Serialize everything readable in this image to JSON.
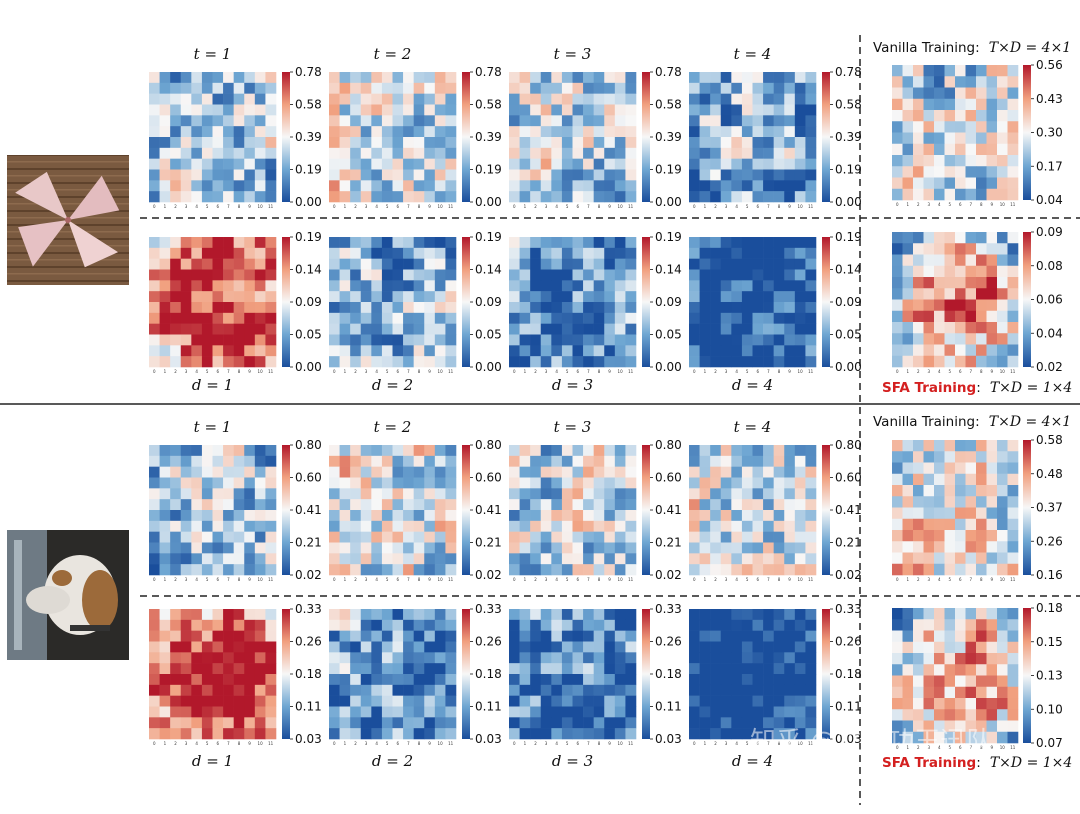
{
  "figure": {
    "row_labels_top": [
      "t = 1",
      "t = 2",
      "t = 3",
      "t = 4"
    ],
    "row_labels_bottom": [
      "d = 1",
      "d = 2",
      "d = 3",
      "d = 4"
    ],
    "vanilla_title_prefix": "Vanilla Training:",
    "vanilla_title_math": "T×D = 4×1",
    "sfa_title_prefix": "SFA Training",
    "sfa_title_suffix": ":",
    "sfa_title_math": "T×D = 1×4",
    "watermark": "知乎 @立大功王迅队",
    "colors": {
      "low": "#1a4e9c",
      "mid": "#f7f7f7",
      "high": "#b2182b"
    }
  },
  "images": [
    {
      "name": "pinwheel-photo",
      "description_icon": "pinwheel-image"
    },
    {
      "name": "dog-photo",
      "description_icon": "dog-image"
    }
  ],
  "chart_data": [
    {
      "type": "heatmap",
      "group": "pinwheel",
      "row": "t",
      "label": "t = 1",
      "grid": [
        12,
        12
      ],
      "ticks": [
        "0.00",
        "0.19",
        "0.39",
        "0.58",
        "0.78"
      ],
      "vmin": 0.0,
      "vmax": 0.78,
      "seed": 11,
      "bias": -0.15
    },
    {
      "type": "heatmap",
      "group": "pinwheel",
      "row": "t",
      "label": "t = 2",
      "grid": [
        12,
        12
      ],
      "ticks": [
        "0.00",
        "0.19",
        "0.39",
        "0.58",
        "0.78"
      ],
      "vmin": 0.0,
      "vmax": 0.78,
      "seed": 12,
      "bias": -0.05
    },
    {
      "type": "heatmap",
      "group": "pinwheel",
      "row": "t",
      "label": "t = 3",
      "grid": [
        12,
        12
      ],
      "ticks": [
        "0.00",
        "0.19",
        "0.39",
        "0.58",
        "0.78"
      ],
      "vmin": 0.0,
      "vmax": 0.78,
      "seed": 13,
      "bias": -0.08
    },
    {
      "type": "heatmap",
      "group": "pinwheel",
      "row": "t",
      "label": "t = 4",
      "grid": [
        12,
        12
      ],
      "ticks": [
        "0.00",
        "0.19",
        "0.39",
        "0.58",
        "0.78"
      ],
      "vmin": 0.0,
      "vmax": 0.78,
      "seed": 14,
      "bias": -0.25
    },
    {
      "type": "heatmap",
      "group": "pinwheel",
      "row": "vanilla",
      "label": "Vanilla Training: T×D = 4×1",
      "grid": [
        12,
        12
      ],
      "ticks": [
        "0.04",
        "0.17",
        "0.30",
        "0.43",
        "0.56"
      ],
      "vmin": 0.04,
      "vmax": 0.56,
      "seed": 15,
      "bias": -0.05
    },
    {
      "type": "heatmap",
      "group": "pinwheel",
      "row": "d",
      "label": "d = 1",
      "grid": [
        12,
        12
      ],
      "ticks": [
        "0.00",
        "0.05",
        "0.09",
        "0.14",
        "0.19"
      ],
      "vmin": 0.0,
      "vmax": 0.19,
      "seed": 21,
      "bias": 0.3
    },
    {
      "type": "heatmap",
      "group": "pinwheel",
      "row": "d",
      "label": "d = 2",
      "grid": [
        12,
        12
      ],
      "ticks": [
        "0.00",
        "0.05",
        "0.09",
        "0.14",
        "0.19"
      ],
      "vmin": 0.0,
      "vmax": 0.19,
      "seed": 22,
      "bias": -0.2
    },
    {
      "type": "heatmap",
      "group": "pinwheel",
      "row": "d",
      "label": "d = 3",
      "grid": [
        12,
        12
      ],
      "ticks": [
        "0.00",
        "0.05",
        "0.09",
        "0.14",
        "0.19"
      ],
      "vmin": 0.0,
      "vmax": 0.19,
      "seed": 23,
      "bias": -0.35
    },
    {
      "type": "heatmap",
      "group": "pinwheel",
      "row": "d",
      "label": "d = 4",
      "grid": [
        12,
        12
      ],
      "ticks": [
        "0.00",
        "0.05",
        "0.09",
        "0.14",
        "0.19"
      ],
      "vmin": 0.0,
      "vmax": 0.19,
      "seed": 24,
      "bias": -0.5
    },
    {
      "type": "heatmap",
      "group": "pinwheel",
      "row": "sfa",
      "label": "SFA Training: T×D = 1×4",
      "grid": [
        12,
        12
      ],
      "ticks": [
        "0.02",
        "0.04",
        "0.06",
        "0.08",
        "0.09"
      ],
      "vmin": 0.02,
      "vmax": 0.09,
      "seed": 25,
      "bias": 0.1
    },
    {
      "type": "heatmap",
      "group": "dog",
      "row": "t",
      "label": "t = 1",
      "grid": [
        12,
        12
      ],
      "ticks": [
        "0.02",
        "0.21",
        "0.41",
        "0.60",
        "0.80"
      ],
      "vmin": 0.02,
      "vmax": 0.8,
      "seed": 31,
      "bias": -0.15
    },
    {
      "type": "heatmap",
      "group": "dog",
      "row": "t",
      "label": "t = 2",
      "grid": [
        12,
        12
      ],
      "ticks": [
        "0.02",
        "0.21",
        "0.41",
        "0.60",
        "0.80"
      ],
      "vmin": 0.02,
      "vmax": 0.8,
      "seed": 32,
      "bias": 0.0
    },
    {
      "type": "heatmap",
      "group": "dog",
      "row": "t",
      "label": "t = 3",
      "grid": [
        12,
        12
      ],
      "ticks": [
        "0.02",
        "0.21",
        "0.41",
        "0.60",
        "0.80"
      ],
      "vmin": 0.02,
      "vmax": 0.8,
      "seed": 33,
      "bias": -0.08
    },
    {
      "type": "heatmap",
      "group": "dog",
      "row": "t",
      "label": "t = 4",
      "grid": [
        12,
        12
      ],
      "ticks": [
        "0.02",
        "0.21",
        "0.41",
        "0.60",
        "0.80"
      ],
      "vmin": 0.02,
      "vmax": 0.8,
      "seed": 34,
      "bias": -0.05
    },
    {
      "type": "heatmap",
      "group": "dog",
      "row": "vanilla",
      "label": "Vanilla Training: T×D = 4×1",
      "grid": [
        12,
        12
      ],
      "ticks": [
        "0.16",
        "0.26",
        "0.37",
        "0.48",
        "0.58"
      ],
      "vmin": 0.16,
      "vmax": 0.58,
      "seed": 35,
      "bias": 0.0
    },
    {
      "type": "heatmap",
      "group": "dog",
      "row": "d",
      "label": "d = 1",
      "grid": [
        12,
        12
      ],
      "ticks": [
        "0.03",
        "0.11",
        "0.18",
        "0.26",
        "0.33"
      ],
      "vmin": 0.03,
      "vmax": 0.33,
      "seed": 41,
      "bias": 0.3
    },
    {
      "type": "heatmap",
      "group": "dog",
      "row": "d",
      "label": "d = 2",
      "grid": [
        12,
        12
      ],
      "ticks": [
        "0.03",
        "0.11",
        "0.18",
        "0.26",
        "0.33"
      ],
      "vmin": 0.03,
      "vmax": 0.33,
      "seed": 42,
      "bias": -0.3
    },
    {
      "type": "heatmap",
      "group": "dog",
      "row": "d",
      "label": "d = 3",
      "grid": [
        12,
        12
      ],
      "ticks": [
        "0.03",
        "0.11",
        "0.18",
        "0.26",
        "0.33"
      ],
      "vmin": 0.03,
      "vmax": 0.33,
      "seed": 43,
      "bias": -0.35
    },
    {
      "type": "heatmap",
      "group": "dog",
      "row": "d",
      "label": "d = 4",
      "grid": [
        12,
        12
      ],
      "ticks": [
        "0.03",
        "0.11",
        "0.18",
        "0.26",
        "0.33"
      ],
      "vmin": 0.03,
      "vmax": 0.33,
      "seed": 44,
      "bias": -0.6
    },
    {
      "type": "heatmap",
      "group": "dog",
      "row": "sfa",
      "label": "SFA Training: T×D = 1×4",
      "grid": [
        12,
        12
      ],
      "ticks": [
        "0.07",
        "0.10",
        "0.13",
        "0.15",
        "0.18"
      ],
      "vmin": 0.07,
      "vmax": 0.18,
      "seed": 45,
      "bias": 0.05
    }
  ]
}
